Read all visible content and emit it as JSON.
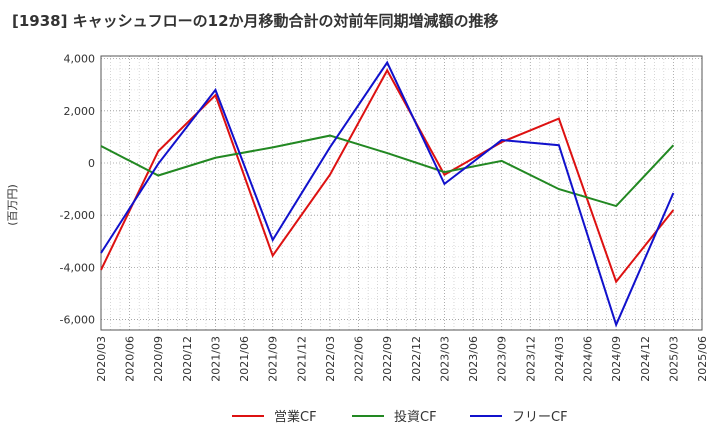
{
  "chart_data": {
    "type": "line",
    "title": "[1938]  キャッシュフローの12か月移動合計の対前年同期増減額の推移",
    "ylabel": "(百万円)",
    "xlabel": "",
    "ylim": [
      -6400,
      4100
    ],
    "yticks": [
      4000,
      2000,
      0,
      -2000,
      -4000,
      -6000
    ],
    "ytick_labels": [
      "4,000",
      "2,000",
      "0",
      "-2,000",
      "-4,000",
      "-6,000"
    ],
    "xticks": [
      "2020/03",
      "2020/06",
      "2020/09",
      "2020/12",
      "2021/03",
      "2021/06",
      "2021/09",
      "2021/12",
      "2022/03",
      "2022/06",
      "2022/09",
      "2022/12",
      "2023/03",
      "2023/06",
      "2023/09",
      "2023/12",
      "2024/03",
      "2024/06",
      "2024/09",
      "2024/12",
      "2025/03",
      "2025/06"
    ],
    "grid": true,
    "legend_position": "bottom",
    "series": [
      {
        "name": "営業CF",
        "color": "#dd1111",
        "points": [
          {
            "x": "2020/03",
            "y": -4100
          },
          {
            "x": "2020/09",
            "y": 450
          },
          {
            "x": "2021/03",
            "y": 2600
          },
          {
            "x": "2021/09",
            "y": -3550
          },
          {
            "x": "2022/03",
            "y": -450
          },
          {
            "x": "2022/09",
            "y": 3550
          },
          {
            "x": "2023/03",
            "y": -450
          },
          {
            "x": "2023/09",
            "y": 800
          },
          {
            "x": "2024/03",
            "y": 1700
          },
          {
            "x": "2024/09",
            "y": -4550
          },
          {
            "x": "2025/03",
            "y": -1800
          }
        ]
      },
      {
        "name": "投資CF",
        "color": "#228822",
        "points": [
          {
            "x": "2020/03",
            "y": 650
          },
          {
            "x": "2020/09",
            "y": -480
          },
          {
            "x": "2021/03",
            "y": 200
          },
          {
            "x": "2021/09",
            "y": 600
          },
          {
            "x": "2022/03",
            "y": 1050
          },
          {
            "x": "2022/09",
            "y": 380
          },
          {
            "x": "2023/03",
            "y": -350
          },
          {
            "x": "2023/09",
            "y": 80
          },
          {
            "x": "2024/03",
            "y": -1000
          },
          {
            "x": "2024/09",
            "y": -1650
          },
          {
            "x": "2025/03",
            "y": 680
          }
        ]
      },
      {
        "name": "フリーCF",
        "color": "#1111cc",
        "points": [
          {
            "x": "2020/03",
            "y": -3450
          },
          {
            "x": "2020/09",
            "y": -30
          },
          {
            "x": "2021/03",
            "y": 2800
          },
          {
            "x": "2021/09",
            "y": -2950
          },
          {
            "x": "2022/03",
            "y": 600
          },
          {
            "x": "2022/09",
            "y": 3850
          },
          {
            "x": "2023/03",
            "y": -800
          },
          {
            "x": "2023/09",
            "y": 880
          },
          {
            "x": "2024/03",
            "y": 680
          },
          {
            "x": "2024/09",
            "y": -6200
          },
          {
            "x": "2025/03",
            "y": -1150
          }
        ]
      }
    ]
  }
}
